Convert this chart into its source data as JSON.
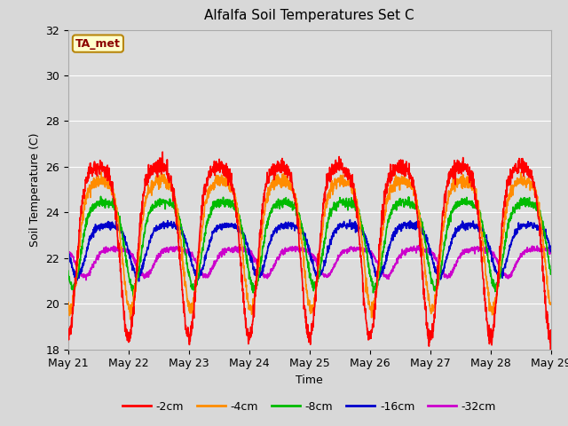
{
  "title": "Alfalfa Soil Temperatures Set C",
  "xlabel": "Time",
  "ylabel": "Soil Temperature (C)",
  "ylim": [
    18,
    32
  ],
  "xlim": [
    0,
    8
  ],
  "x_tick_labels": [
    "May 21",
    "May 22",
    "May 23",
    "May 24",
    "May 25",
    "May 26",
    "May 27",
    "May 28",
    "May 29"
  ],
  "x_tick_positions": [
    0,
    1,
    2,
    3,
    4,
    5,
    6,
    7,
    8
  ],
  "colors": {
    "-2cm": "#ff0000",
    "-4cm": "#ff8c00",
    "-8cm": "#00bb00",
    "-16cm": "#0000cc",
    "-32cm": "#cc00cc"
  },
  "legend_labels": [
    "-2cm",
    "-4cm",
    "-8cm",
    "-16cm",
    "-32cm"
  ],
  "annotation_text": "TA_met",
  "annotation_box_facecolor": "#ffffcc",
  "annotation_box_edgecolor": "#b8860b",
  "annotation_text_color": "#8b0000",
  "fig_facecolor": "#d8d8d8",
  "plot_bg_color": "#dcdcdc",
  "grid_color": "#ffffff",
  "amplitudes": [
    5.0,
    3.8,
    2.5,
    1.5,
    0.8
  ],
  "bases": [
    23.5,
    23.5,
    23.2,
    22.7,
    22.0
  ],
  "lags": [
    0.0,
    0.03,
    0.08,
    0.15,
    0.28
  ],
  "noise": [
    0.18,
    0.14,
    0.1,
    0.08,
    0.06
  ],
  "n_points": 2000,
  "linewidth": 1.2
}
